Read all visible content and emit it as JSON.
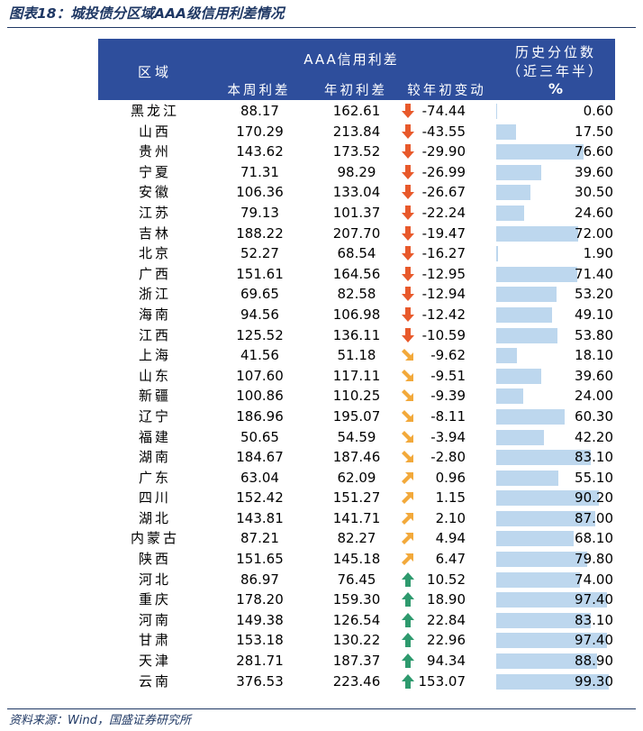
{
  "figure": {
    "title": "图表18：城投债分区域AAA级信用利差情况",
    "source": "资料来源：Wind，国盛证券研究所"
  },
  "table": {
    "headers": {
      "region": "区域",
      "aaa_group": "AAA信用利差",
      "current_week": "本周利差",
      "year_start": "年初利差",
      "change": "较年初变动",
      "percentile_line1": "历史分位数",
      "percentile_line2": "（近三年半）",
      "percentile_unit": "%"
    },
    "colors": {
      "header_bg": "#2e4e9c",
      "bar": "#bdd7ee",
      "arrow_down_strong": "#e8592b",
      "arrow_down_mild": "#f2a93b",
      "arrow_up_mild": "#f2a93b",
      "arrow_up_strong": "#2e9a6e"
    },
    "rows": [
      {
        "region": "黑龙江",
        "current": "88.17",
        "start": "162.61",
        "change": "-74.44",
        "icon": "arrow-down-icon",
        "pct": "0.60",
        "pct_value": 0.6
      },
      {
        "region": "山西",
        "current": "170.29",
        "start": "213.84",
        "change": "-43.55",
        "icon": "arrow-down-icon",
        "pct": "17.50",
        "pct_value": 17.5
      },
      {
        "region": "贵州",
        "current": "143.62",
        "start": "173.52",
        "change": "-29.90",
        "icon": "arrow-down-icon",
        "pct": "76.60",
        "pct_value": 76.6
      },
      {
        "region": "宁夏",
        "current": "71.31",
        "start": "98.29",
        "change": "-26.99",
        "icon": "arrow-down-icon",
        "pct": "39.60",
        "pct_value": 39.6
      },
      {
        "region": "安徽",
        "current": "106.36",
        "start": "133.04",
        "change": "-26.67",
        "icon": "arrow-down-icon",
        "pct": "30.50",
        "pct_value": 30.5
      },
      {
        "region": "江苏",
        "current": "79.13",
        "start": "101.37",
        "change": "-22.24",
        "icon": "arrow-down-icon",
        "pct": "24.60",
        "pct_value": 24.6
      },
      {
        "region": "吉林",
        "current": "188.22",
        "start": "207.70",
        "change": "-19.47",
        "icon": "arrow-down-icon",
        "pct": "72.00",
        "pct_value": 72.0
      },
      {
        "region": "北京",
        "current": "52.27",
        "start": "68.54",
        "change": "-16.27",
        "icon": "arrow-down-icon",
        "pct": "1.90",
        "pct_value": 1.9
      },
      {
        "region": "广西",
        "current": "151.61",
        "start": "164.56",
        "change": "-12.95",
        "icon": "arrow-down-icon",
        "pct": "71.40",
        "pct_value": 71.4
      },
      {
        "region": "浙江",
        "current": "69.65",
        "start": "82.58",
        "change": "-12.94",
        "icon": "arrow-down-icon",
        "pct": "53.20",
        "pct_value": 53.2
      },
      {
        "region": "海南",
        "current": "94.56",
        "start": "106.98",
        "change": "-12.42",
        "icon": "arrow-down-icon",
        "pct": "49.10",
        "pct_value": 49.1
      },
      {
        "region": "江西",
        "current": "125.52",
        "start": "136.11",
        "change": "-10.59",
        "icon": "arrow-down-icon",
        "pct": "53.80",
        "pct_value": 53.8
      },
      {
        "region": "上海",
        "current": "41.56",
        "start": "51.18",
        "change": "-9.62",
        "icon": "arrow-down-right-icon",
        "pct": "18.10",
        "pct_value": 18.1
      },
      {
        "region": "山东",
        "current": "107.60",
        "start": "117.11",
        "change": "-9.51",
        "icon": "arrow-down-right-icon",
        "pct": "39.60",
        "pct_value": 39.6
      },
      {
        "region": "新疆",
        "current": "100.86",
        "start": "110.25",
        "change": "-9.39",
        "icon": "arrow-down-right-icon",
        "pct": "24.00",
        "pct_value": 24.0
      },
      {
        "region": "辽宁",
        "current": "186.96",
        "start": "195.07",
        "change": "-8.11",
        "icon": "arrow-down-right-icon",
        "pct": "60.30",
        "pct_value": 60.3
      },
      {
        "region": "福建",
        "current": "50.65",
        "start": "54.59",
        "change": "-3.94",
        "icon": "arrow-down-right-icon",
        "pct": "42.20",
        "pct_value": 42.2
      },
      {
        "region": "湖南",
        "current": "184.67",
        "start": "187.46",
        "change": "-2.80",
        "icon": "arrow-down-right-icon",
        "pct": "83.10",
        "pct_value": 83.1
      },
      {
        "region": "广东",
        "current": "63.04",
        "start": "62.09",
        "change": "0.96",
        "icon": "arrow-up-right-icon",
        "pct": "55.10",
        "pct_value": 55.1
      },
      {
        "region": "四川",
        "current": "152.42",
        "start": "151.27",
        "change": "1.15",
        "icon": "arrow-up-right-icon",
        "pct": "90.20",
        "pct_value": 90.2
      },
      {
        "region": "湖北",
        "current": "143.81",
        "start": "141.71",
        "change": "2.10",
        "icon": "arrow-up-right-icon",
        "pct": "87.00",
        "pct_value": 87.0
      },
      {
        "region": "内蒙古",
        "current": "87.21",
        "start": "82.27",
        "change": "4.94",
        "icon": "arrow-up-right-icon",
        "pct": "68.10",
        "pct_value": 68.1
      },
      {
        "region": "陕西",
        "current": "151.65",
        "start": "145.18",
        "change": "6.47",
        "icon": "arrow-up-right-icon",
        "pct": "79.80",
        "pct_value": 79.8
      },
      {
        "region": "河北",
        "current": "86.97",
        "start": "76.45",
        "change": "10.52",
        "icon": "arrow-up-icon",
        "pct": "74.00",
        "pct_value": 74.0
      },
      {
        "region": "重庆",
        "current": "178.20",
        "start": "159.30",
        "change": "18.90",
        "icon": "arrow-up-icon",
        "pct": "97.40",
        "pct_value": 97.4
      },
      {
        "region": "河南",
        "current": "149.38",
        "start": "126.54",
        "change": "22.84",
        "icon": "arrow-up-icon",
        "pct": "83.10",
        "pct_value": 83.1
      },
      {
        "region": "甘肃",
        "current": "153.18",
        "start": "130.22",
        "change": "22.96",
        "icon": "arrow-up-icon",
        "pct": "97.40",
        "pct_value": 97.4
      },
      {
        "region": "天津",
        "current": "281.71",
        "start": "187.37",
        "change": "94.34",
        "icon": "arrow-up-icon",
        "pct": "88.90",
        "pct_value": 88.9
      },
      {
        "region": "云南",
        "current": "376.53",
        "start": "223.46",
        "change": "153.07",
        "icon": "arrow-up-icon",
        "pct": "99.30",
        "pct_value": 99.3
      }
    ]
  }
}
